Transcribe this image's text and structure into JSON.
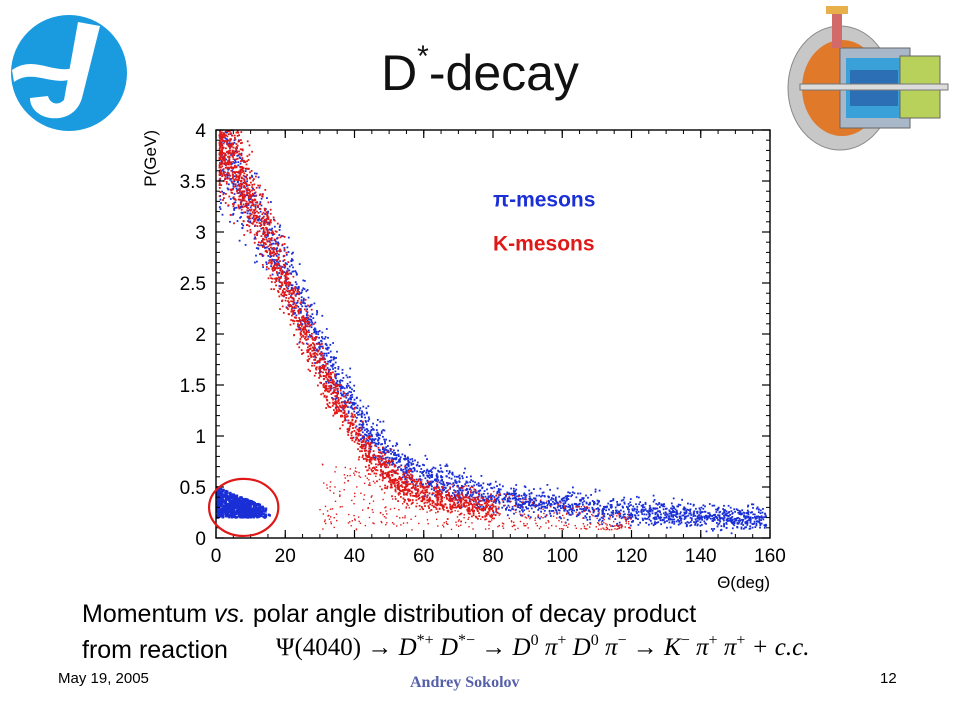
{
  "slide": {
    "title_main": "D",
    "title_sup": "*",
    "title_rest": "-decay",
    "caption_lead": "Momentum ",
    "caption_vs": "vs.",
    "caption_rest": " polar angle distribution of decay product",
    "caption_line2": "from reaction",
    "formula": {
      "psi": "Ψ(4040)",
      "arrow": "→",
      "dstar_p": "D",
      "dstar_p_sup": "*+",
      "dstar_m": "D",
      "dstar_m_sup": "*−",
      "d0": "D",
      "d0_sup": "0",
      "pi": "π",
      "pi_sup_plus": "+",
      "pi_sup_minus": "−",
      "k": "K",
      "k_sup": "−",
      "cc": "+ c.c."
    },
    "footer_date": "May 19, 2005",
    "footer_author": "Andrey Sokolov",
    "footer_page": "12",
    "logo_icon": "institute-logo-icon",
    "detector_icon": "detector-cutaway-icon"
  },
  "colors": {
    "pion": "#1a2fd6",
    "kaon": "#e01818",
    "circle": "#e01818",
    "logo": "#1a9be0"
  },
  "chart_data": {
    "type": "scatter",
    "xlabel": "Θ(deg)",
    "ylabel": "P(GeV)",
    "xlim": [
      0,
      160
    ],
    "ylim": [
      0,
      4
    ],
    "xticks": [
      0,
      20,
      40,
      60,
      80,
      100,
      120,
      140,
      160
    ],
    "xticklabels": [
      "0",
      "20",
      "40",
      "60",
      "80",
      "100",
      "120",
      "140",
      "160"
    ],
    "yticks": [
      0,
      0.5,
      1,
      1.5,
      2,
      2.5,
      3,
      3.5,
      4
    ],
    "yticklabels": [
      "0",
      "0.5",
      "1",
      "1.5",
      "2",
      "2.5",
      "3",
      "3.5",
      "4"
    ],
    "legend_position": "upper-right",
    "series": [
      {
        "name": "π-mesons",
        "color": "#1a2fd6",
        "band_center": [
          [
            2,
            3.8
          ],
          [
            5,
            3.55
          ],
          [
            10,
            3.25
          ],
          [
            15,
            2.95
          ],
          [
            20,
            2.6
          ],
          [
            25,
            2.25
          ],
          [
            30,
            1.9
          ],
          [
            35,
            1.55
          ],
          [
            40,
            1.25
          ],
          [
            45,
            1.0
          ],
          [
            50,
            0.82
          ],
          [
            60,
            0.6
          ],
          [
            70,
            0.48
          ],
          [
            80,
            0.4
          ],
          [
            100,
            0.32
          ],
          [
            120,
            0.26
          ],
          [
            140,
            0.22
          ],
          [
            160,
            0.18
          ]
        ],
        "cluster": {
          "x_range": [
            0,
            16
          ],
          "p_range": [
            0.15,
            0.45
          ]
        }
      },
      {
        "name": "K-mesons",
        "color": "#e01818",
        "band_center": [
          [
            2,
            3.9
          ],
          [
            5,
            3.7
          ],
          [
            10,
            3.35
          ],
          [
            15,
            2.95
          ],
          [
            20,
            2.5
          ],
          [
            25,
            2.1
          ],
          [
            30,
            1.7
          ],
          [
            35,
            1.35
          ],
          [
            40,
            1.05
          ],
          [
            45,
            0.8
          ],
          [
            50,
            0.62
          ],
          [
            55,
            0.5
          ],
          [
            60,
            0.42
          ],
          [
            70,
            0.33
          ],
          [
            80,
            0.28
          ]
        ],
        "low_spray": {
          "x_range": [
            30,
            120
          ],
          "p_range": [
            0.1,
            0.6
          ]
        }
      }
    ],
    "annotations": [
      {
        "type": "ellipse",
        "center": [
          8,
          0.3
        ],
        "rx_deg": 10,
        "ry_gev": 0.28,
        "color": "#e01818"
      }
    ]
  }
}
